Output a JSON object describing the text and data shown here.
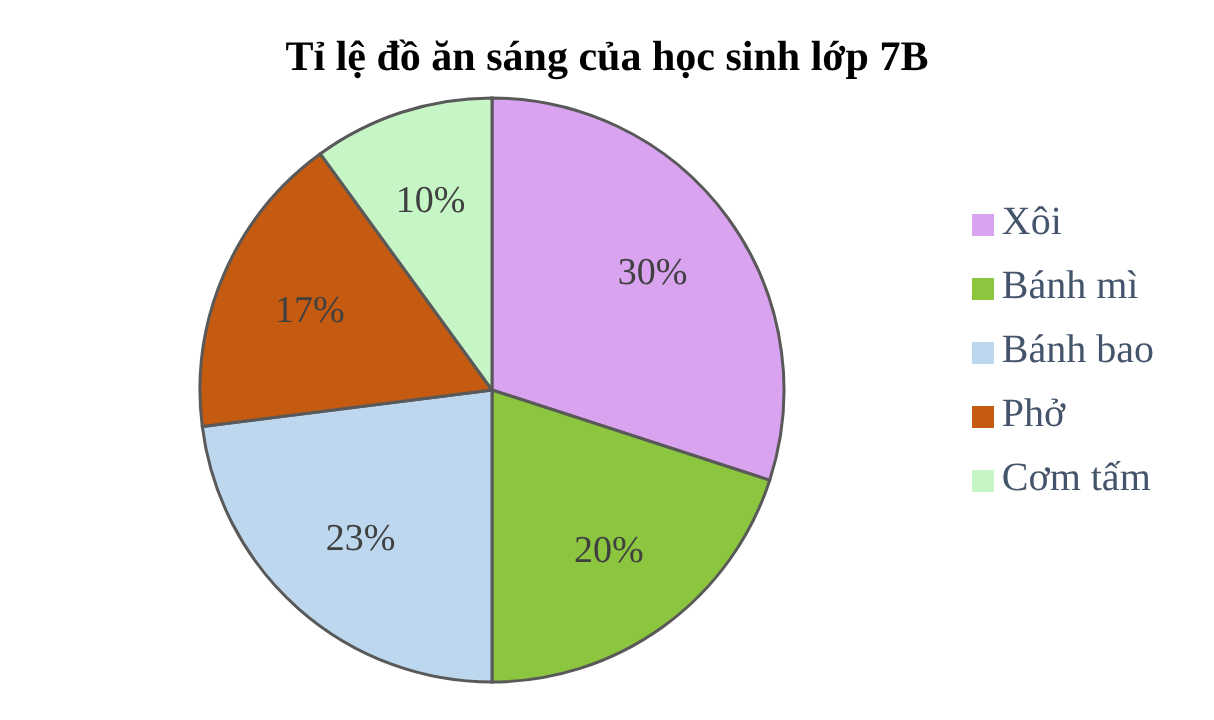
{
  "chart_data": {
    "type": "pie",
    "title": "Tỉ lệ đồ ăn sáng của học sinh lớp 7B",
    "categories": [
      "Xôi",
      "Bánh mì",
      "Bánh bao",
      "Phở",
      "Cơm tấm"
    ],
    "values": [
      30,
      20,
      23,
      17,
      10
    ],
    "colors": [
      "#d9a3f0",
      "#8cc63f",
      "#bdd7ee",
      "#c55a11",
      "#c6f5c6"
    ],
    "value_labels": [
      "30%",
      "20%",
      "23%",
      "17%",
      "10%"
    ],
    "legend": "right"
  }
}
